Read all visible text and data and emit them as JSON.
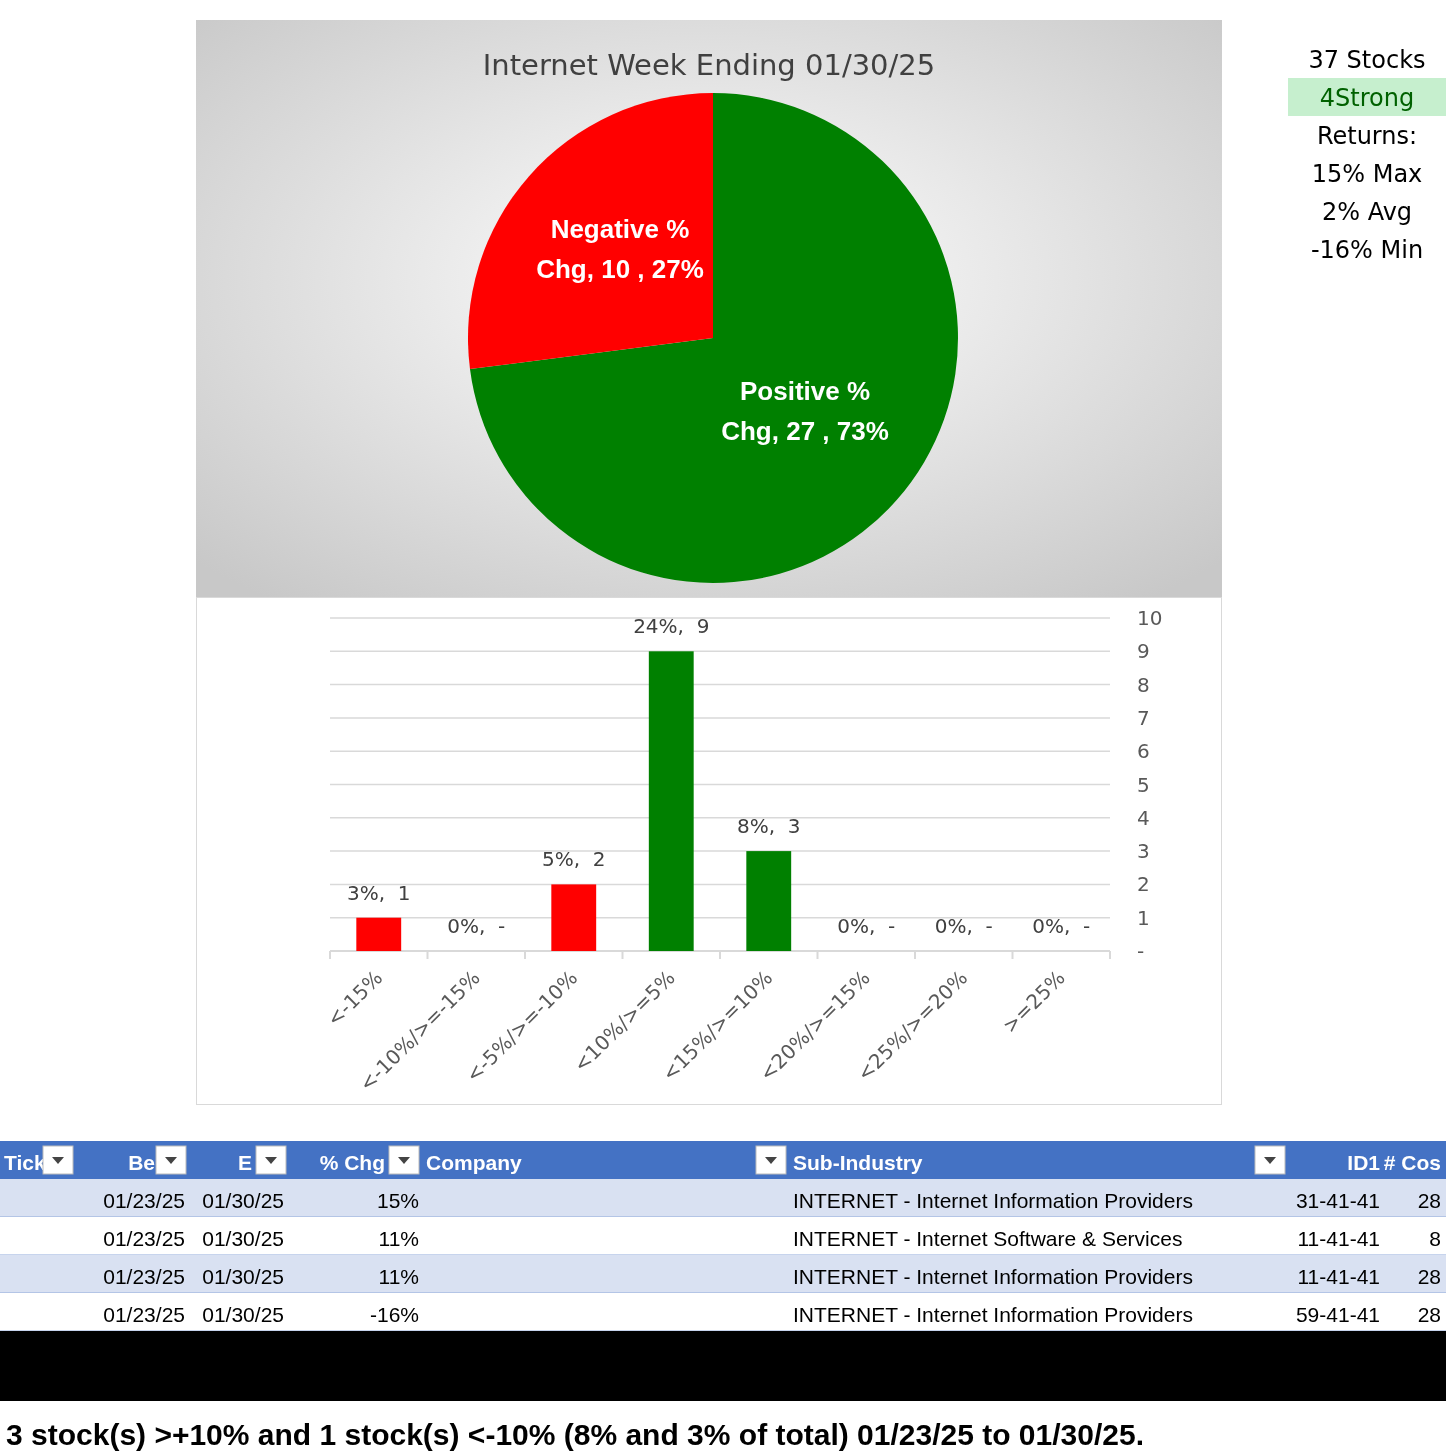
{
  "chart_data": [
    {
      "type": "pie",
      "title": "Internet Week Ending 01/30/25",
      "categories": [
        "Positive % Chg",
        "Negative % Chg"
      ],
      "values": [
        27,
        10
      ],
      "colors": [
        "#008000",
        "#ff0000"
      ],
      "value_labels": [
        "27 , 73%",
        "10 , 27%"
      ]
    },
    {
      "type": "bar",
      "categories": [
        "<-15%",
        "<-10%/>=-15%",
        "<-5%/>=-10%",
        "<10%/>=5%",
        "<15%/>=10%",
        "<20%/>=15%",
        "<25%/>=20%",
        ">=25%"
      ],
      "values": [
        1,
        0,
        2,
        9,
        3,
        0,
        0,
        0
      ],
      "colors": [
        "#ff0000",
        "#ff0000",
        "#ff0000",
        "#008000",
        "#008000",
        "#008000",
        "#008000",
        "#008000"
      ],
      "value_labels": [
        "3%,  1",
        "0%,  -",
        "5%,  2",
        "24%,  9",
        "8%,  3",
        "0%,  -",
        "0%,  -",
        "0%,  -"
      ],
      "ylim": [
        0,
        10
      ],
      "yticks": [
        {
          "value": 0,
          "label": "-"
        },
        1,
        2,
        3,
        4,
        5,
        6,
        7,
        8,
        9,
        10
      ],
      "grid": "y"
    },
    {
      "type": "other",
      "annotations": [
        "37 Stocks",
        "4Strong",
        "Returns:",
        "15% Max",
        "2% Avg",
        "-16% Min"
      ]
    },
    {
      "type": "other",
      "categories": [
        "Tick",
        "Be",
        "E",
        "% Chg",
        "Company",
        "Sub-Industry",
        "ID1",
        "# Cos"
      ],
      "cell_labels": [
        [
          null,
          "01/23/25",
          "01/30/25",
          "15%",
          null,
          "INTERNET - Internet Information Providers",
          "31-41-41",
          "28"
        ],
        [
          null,
          "01/23/25",
          "01/30/25",
          "11%",
          null,
          "INTERNET - Internet Software & Services",
          "11-41-41",
          "8"
        ],
        [
          null,
          "01/23/25",
          "01/30/25",
          "11%",
          null,
          "INTERNET - Internet Information Providers",
          "11-41-41",
          "28"
        ],
        [
          null,
          "01/23/25",
          "01/30/25",
          "-16%",
          null,
          "INTERNET - Internet Information Providers",
          "59-41-41",
          "28"
        ]
      ],
      "annotations": [
        "3 stock(s) >+10% and 1 stock(s) <-10% (8% and 3% of total) 01/23/25 to 01/30/25."
      ]
    }
  ]
}
